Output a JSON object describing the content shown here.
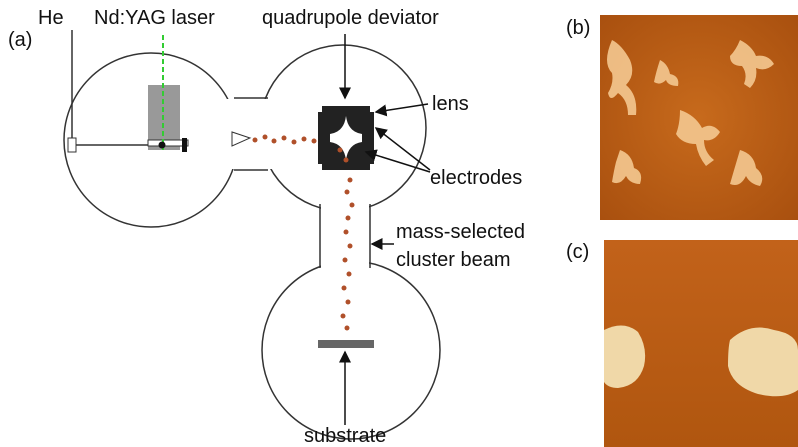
{
  "panels": {
    "a": "(a)",
    "b": "(b)",
    "c": "(c)"
  },
  "labels": {
    "he": "He",
    "laser": "Nd:YAG laser",
    "deviator": "quadrupole deviator",
    "lens": "lens",
    "electrodes": "electrodes",
    "beam_line1": "mass-selected",
    "beam_line2": "cluster beam",
    "substrate": "substrate"
  }
}
